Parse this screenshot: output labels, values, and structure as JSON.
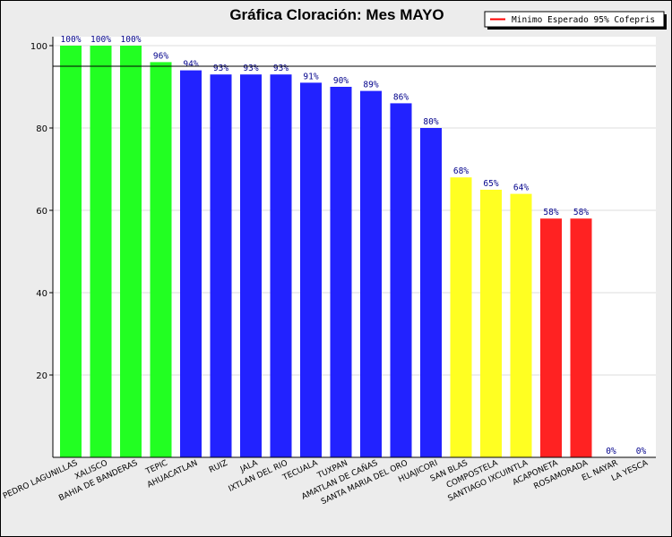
{
  "chart_data": {
    "type": "bar",
    "title": "Gráfica Cloración: Mes MAYO",
    "xlabel": "",
    "ylabel": "",
    "ylim": [
      0,
      100
    ],
    "yticks": [
      20,
      40,
      60,
      80,
      100
    ],
    "grid": true,
    "legend": {
      "position": "top-right",
      "entries": [
        {
          "label": "Minimo Esperado 95% Cofepris",
          "color": "#ff0000"
        }
      ]
    },
    "reference_line": {
      "value": 95,
      "label": "Minimo Esperado 95% Cofepris"
    },
    "categories": [
      "PEDRO LAGUNILLAS",
      "XALISCO",
      "BAHIA DE BANDERAS",
      "TEPIC",
      "AHUACATLAN",
      "RUIZ",
      "JALA",
      "IXTLAN DEL RIO",
      "TECUALA",
      "TUXPAN",
      "AMATLAN DE CAÑAS",
      "SANTA MARIA DEL ORO",
      "HUAJICORI",
      "SAN BLAS",
      "COMPOSTELA",
      "SANTIAGO IXCUINTLA",
      "ACAPONETA",
      "ROSAMORADA",
      "EL NAYAR",
      "LA YESCA"
    ],
    "values": [
      100,
      100,
      100,
      96,
      94,
      93,
      93,
      93,
      91,
      90,
      89,
      86,
      80,
      68,
      65,
      64,
      58,
      58,
      0,
      0
    ],
    "value_labels": [
      "100%",
      "100%",
      "100%",
      "96%",
      "94%",
      "93%",
      "93%",
      "93%",
      "91%",
      "90%",
      "89%",
      "86%",
      "80%",
      "68%",
      "65%",
      "64%",
      "58%",
      "58%",
      "0%",
      "0%"
    ],
    "colors": [
      "#22ff22",
      "#22ff22",
      "#22ff22",
      "#22ff22",
      "#2222ff",
      "#2222ff",
      "#2222ff",
      "#2222ff",
      "#2222ff",
      "#2222ff",
      "#2222ff",
      "#2222ff",
      "#2222ff",
      "#ffff22",
      "#ffff22",
      "#ffff22",
      "#ff2222",
      "#ff2222",
      "#ff2222",
      "#ff2222"
    ]
  }
}
